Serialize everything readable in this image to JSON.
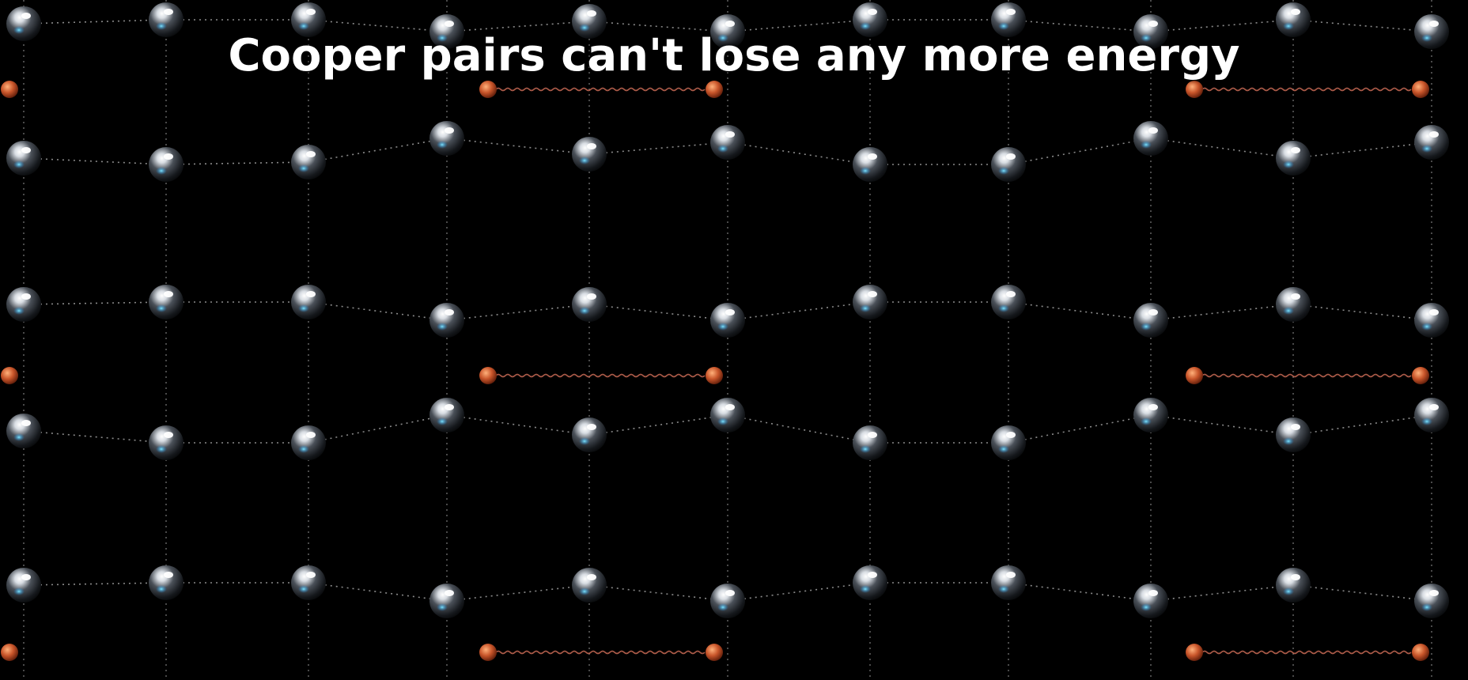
{
  "caption": "Cooper pairs can't lose any more energy",
  "colors": {
    "background": "#000000",
    "ion_highlight": "#ffffff",
    "ion_body": "#2a2e33",
    "ion_glow": "#3fd2ff",
    "electron": "#c8552a",
    "pair_link": "#d0705a",
    "lattice_line": "#7d7d7d"
  },
  "icons": {
    "ion": "lattice-ion-sphere",
    "electron": "electron-sphere",
    "pair_link": "wavy-phonon-link"
  }
}
